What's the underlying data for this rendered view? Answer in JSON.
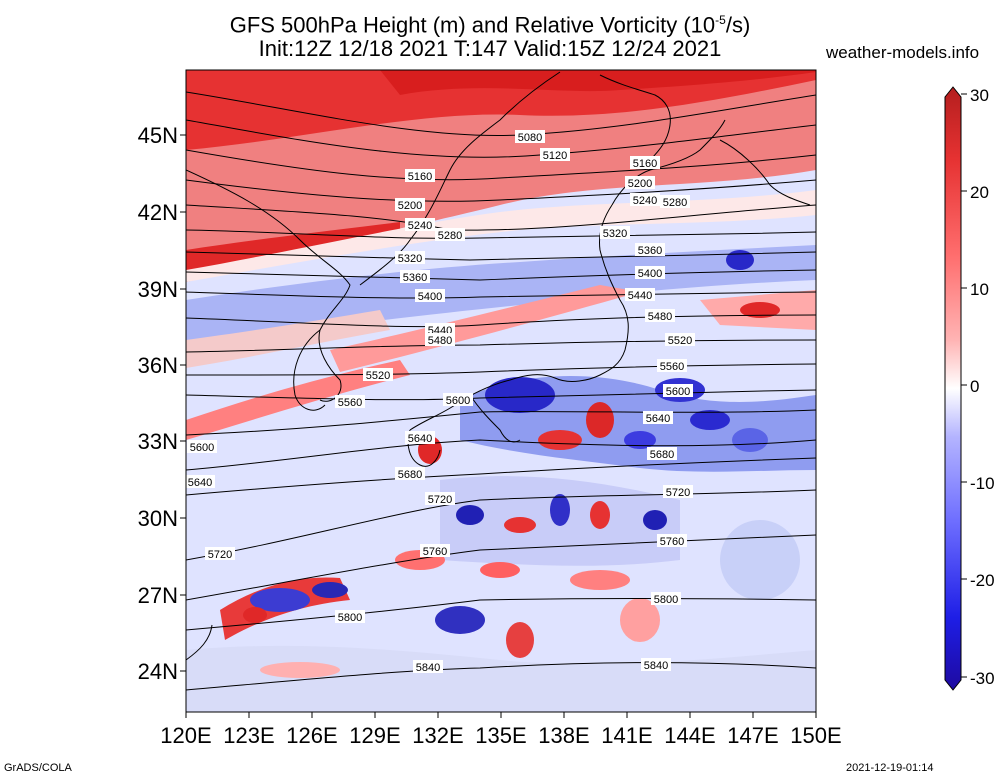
{
  "header": {
    "title_line1": "GFS 500hPa Height (m) and Relative Vorticity (10",
    "title_exp": "-5",
    "title_line1_end": "/s)",
    "title_line2": "Init:12Z 12/18 2021 T:147 Valid:15Z 12/24 2021",
    "site": "weather-models.info"
  },
  "map": {
    "lat_labels": [
      "45N",
      "42N",
      "39N",
      "36N",
      "33N",
      "30N",
      "27N",
      "24N"
    ],
    "lon_labels": [
      "120E",
      "123E",
      "126E",
      "129E",
      "132E",
      "135E",
      "138E",
      "141E",
      "144E",
      "147E",
      "150E"
    ],
    "contour_labels": [
      "5080",
      "5120",
      "5160",
      "5160",
      "5200",
      "5200",
      "5240",
      "5240",
      "5280",
      "5280",
      "5320",
      "5320",
      "5360",
      "5360",
      "5400",
      "5400",
      "5440",
      "5440",
      "5480",
      "5480",
      "5520",
      "5520",
      "5560",
      "5560",
      "5600",
      "5600",
      "5600",
      "5640",
      "5640",
      "5640",
      "5680",
      "5680",
      "5720",
      "5720",
      "5720",
      "5760",
      "5760",
      "5800",
      "5800",
      "5840",
      "5840"
    ]
  },
  "colorbar": {
    "labels": [
      "30",
      "20",
      "10",
      "0",
      "-10",
      "-20",
      "-30"
    ],
    "colors": [
      "#b41e1e",
      "#e63232",
      "#ff6e6e",
      "#ffb4b4",
      "#ffffff",
      "#b4b4ff",
      "#6e6eff",
      "#1e1ee6",
      "#1e0aa0"
    ]
  },
  "footer": {
    "left": "GrADS/COLA",
    "right": "2021-12-19-01:14"
  }
}
